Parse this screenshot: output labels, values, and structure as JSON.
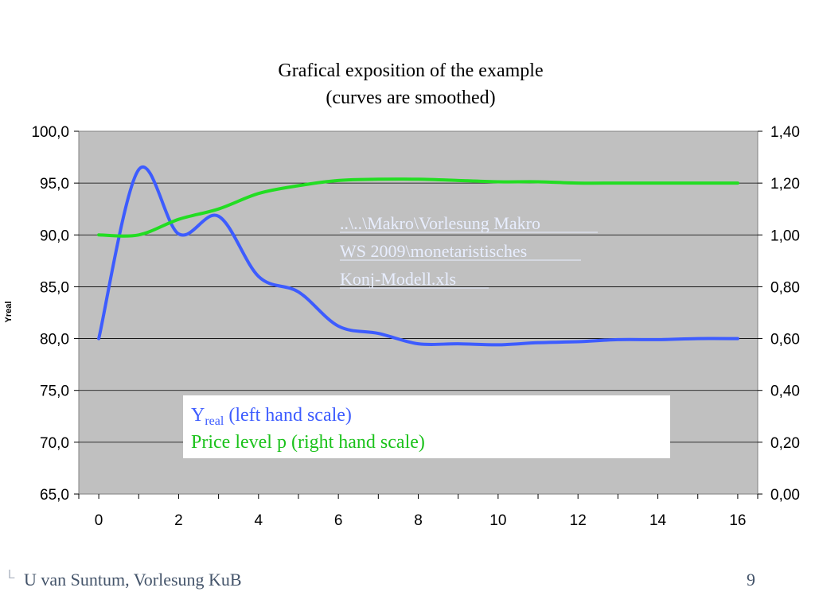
{
  "chart_data": {
    "type": "line",
    "title": [
      "Grafical exposition of the example",
      "(curves are smoothed)"
    ],
    "xlabel": "",
    "ylabel": "Yreal",
    "x_ticks": [
      0,
      2,
      4,
      6,
      8,
      10,
      12,
      14,
      16
    ],
    "xlim": [
      -0.5,
      16.5
    ],
    "ylim": [
      65,
      100
    ],
    "y_ticks": [
      "100,0",
      "95,0",
      "90,0",
      "85,0",
      "80,0",
      "75,0",
      "70,0",
      "65,0"
    ],
    "y2lim": [
      0,
      1.4
    ],
    "y2_ticks": [
      "1,40",
      "1,20",
      "1,00",
      "0,80",
      "0,60",
      "0,40",
      "0,20",
      "0,00"
    ],
    "grid": true,
    "series": [
      {
        "name": "Yreal",
        "axis": "left",
        "color": "#3d5cff",
        "x": [
          0,
          1,
          2,
          3,
          4,
          5,
          6,
          7,
          8,
          9,
          10,
          11,
          12,
          13,
          14,
          15,
          16
        ],
        "y": [
          80.0,
          96.3,
          90.1,
          91.8,
          86.0,
          84.5,
          81.2,
          80.5,
          79.5,
          79.5,
          79.4,
          79.6,
          79.7,
          79.9,
          79.9,
          80.0,
          80.0
        ]
      },
      {
        "name": "Price level p",
        "axis": "right",
        "color": "#22dd22",
        "x": [
          0,
          1,
          2,
          3,
          4,
          5,
          6,
          7,
          8,
          9,
          10,
          11,
          12,
          13,
          14,
          15,
          16
        ],
        "y": [
          1.0,
          1.0,
          1.06,
          1.1,
          1.16,
          1.19,
          1.21,
          1.215,
          1.215,
          1.21,
          1.205,
          1.205,
          1.2,
          1.2,
          1.2,
          1.2,
          1.2
        ]
      }
    ],
    "legend": {
      "placement": "center",
      "line1_main": "Y",
      "line1_sub": "real",
      "line1_rest": " (left hand scale)",
      "line2": "Price level p (right hand scale)"
    },
    "annotation": {
      "lines": [
        "..\\..\\Makro\\Vorlesung Makro",
        "WS 2009\\monetaristisches",
        "Konj-Modell.xls"
      ],
      "color": "#e8eeff"
    },
    "plot_bg": "#c0c0c0"
  },
  "footer": {
    "author": "U van Suntum, Vorlesung KuB",
    "page": "9",
    "mark": "L"
  }
}
